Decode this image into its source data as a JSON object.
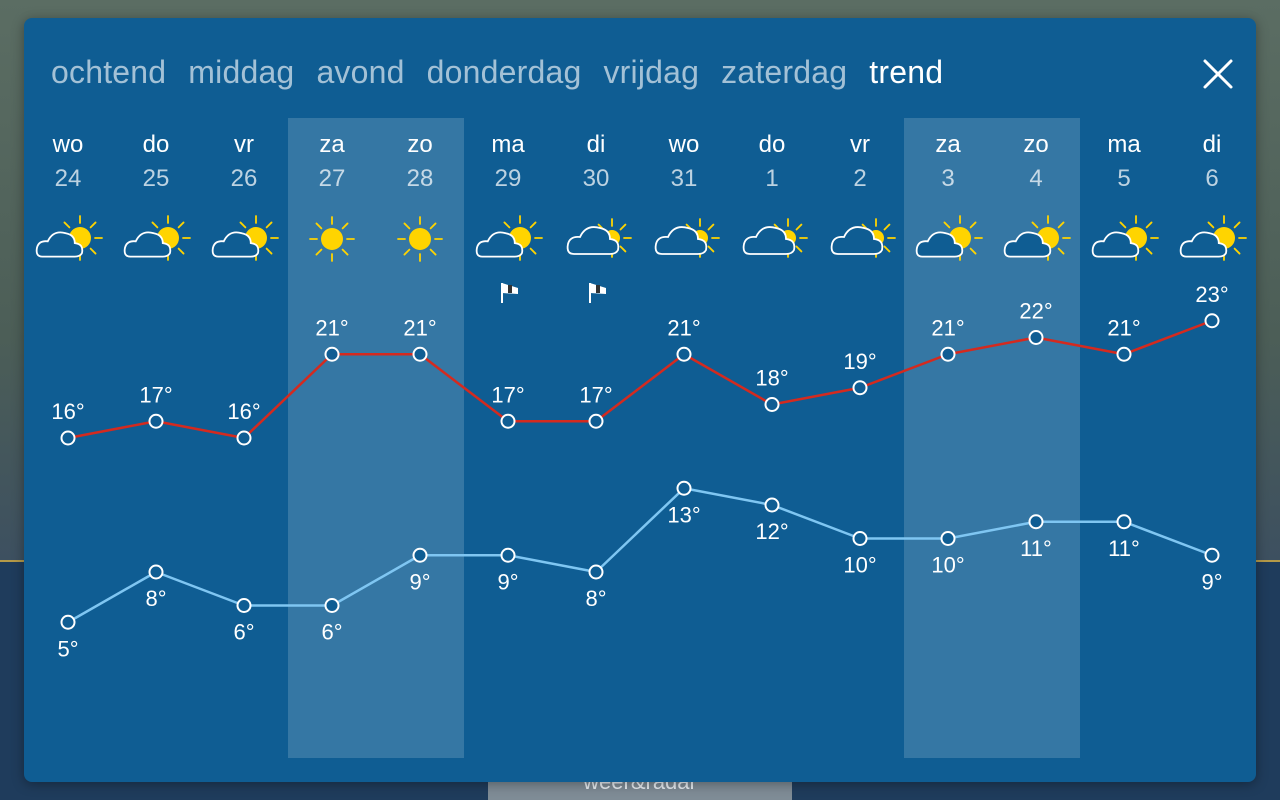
{
  "tabs": [
    {
      "label": "ochtend",
      "active": false
    },
    {
      "label": "middag",
      "active": false
    },
    {
      "label": "avond",
      "active": false
    },
    {
      "label": "donderdag",
      "active": false
    },
    {
      "label": "vrijdag",
      "active": false
    },
    {
      "label": "zaterdag",
      "active": false
    },
    {
      "label": "trend",
      "active": true
    }
  ],
  "close_icon": "close-icon",
  "bottom_tab_label": "weer&radar",
  "colors": {
    "panel": "#0f5d93",
    "max_line": "#d42a1f",
    "min_line": "#7fc6f2",
    "weekend_band": "rgba(255,255,255,0.16)"
  },
  "chart_data": {
    "type": "line",
    "days": [
      {
        "name": "wo",
        "date": "24",
        "icon": "partly-cloudy-sun",
        "wind": false,
        "weekend": false
      },
      {
        "name": "do",
        "date": "25",
        "icon": "partly-cloudy-sun",
        "wind": false,
        "weekend": false
      },
      {
        "name": "vr",
        "date": "26",
        "icon": "partly-cloudy-sun",
        "wind": false,
        "weekend": false
      },
      {
        "name": "za",
        "date": "27",
        "icon": "sun",
        "wind": false,
        "weekend": true
      },
      {
        "name": "zo",
        "date": "28",
        "icon": "sun",
        "wind": false,
        "weekend": true
      },
      {
        "name": "ma",
        "date": "29",
        "icon": "partly-cloudy-sun",
        "wind": true,
        "weekend": false
      },
      {
        "name": "di",
        "date": "30",
        "icon": "cloudy-sun",
        "wind": true,
        "weekend": false
      },
      {
        "name": "wo",
        "date": "31",
        "icon": "cloudy-sun",
        "wind": false,
        "weekend": false
      },
      {
        "name": "do",
        "date": "1",
        "icon": "cloudy-sun",
        "wind": false,
        "weekend": false
      },
      {
        "name": "vr",
        "date": "2",
        "icon": "cloudy-sun",
        "wind": false,
        "weekend": false
      },
      {
        "name": "za",
        "date": "3",
        "icon": "partly-cloudy-sun",
        "wind": false,
        "weekend": true
      },
      {
        "name": "zo",
        "date": "4",
        "icon": "partly-cloudy-sun",
        "wind": false,
        "weekend": true
      },
      {
        "name": "ma",
        "date": "5",
        "icon": "partly-cloudy-sun",
        "wind": false,
        "weekend": false
      },
      {
        "name": "di",
        "date": "6",
        "icon": "partly-cloudy-sun",
        "wind": false,
        "weekend": false
      }
    ],
    "series": [
      {
        "key": "max",
        "values": [
          16,
          17,
          16,
          21,
          21,
          17,
          17,
          21,
          18,
          19,
          21,
          22,
          21,
          23
        ],
        "labels": [
          "16°",
          "17°",
          "16°",
          "21°",
          "21°",
          "17°",
          "17°",
          "21°",
          "18°",
          "19°",
          "21°",
          "22°",
          "21°",
          "23°"
        ]
      },
      {
        "key": "min",
        "values": [
          5,
          8,
          6,
          6,
          9,
          9,
          8,
          13,
          12,
          10,
          10,
          11,
          11,
          9
        ],
        "labels": [
          "5°",
          "8°",
          "6°",
          "6°",
          "9°",
          "9°",
          "8°",
          "13°",
          "12°",
          "10°",
          "10°",
          "11°",
          "11°",
          "9°"
        ]
      }
    ]
  }
}
